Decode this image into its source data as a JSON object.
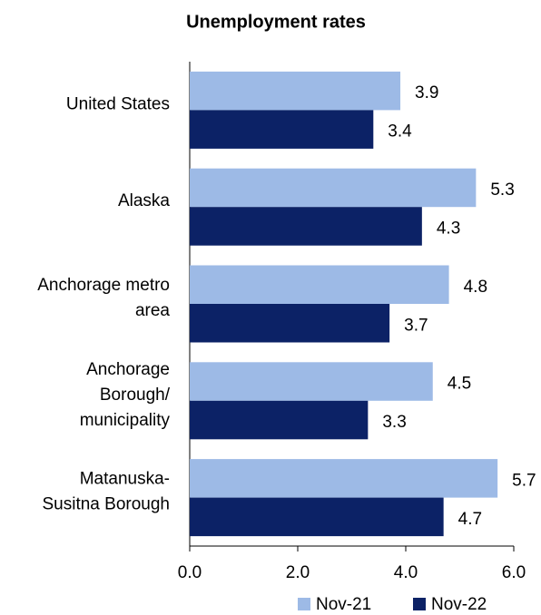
{
  "chart_data": {
    "type": "bar",
    "orientation": "horizontal",
    "title": "Unemployment rates",
    "categories": [
      "United States",
      "Alaska",
      "Anchorage metro\narea",
      "Anchorage\nBorough/\nmunicipality",
      "Matanuska-\nSusitna Borough"
    ],
    "series": [
      {
        "name": "Nov-21",
        "color": "#9dbae6",
        "values": [
          3.9,
          5.3,
          4.8,
          4.5,
          5.7
        ]
      },
      {
        "name": "Nov-22",
        "color": "#0c2266",
        "values": [
          3.4,
          4.3,
          3.7,
          3.3,
          4.7
        ]
      }
    ],
    "xlim": [
      0,
      6
    ],
    "xticks": [
      {
        "value": 0,
        "label": "0.0"
      },
      {
        "value": 2,
        "label": "2.0"
      },
      {
        "value": 4,
        "label": "4.0"
      },
      {
        "value": 6,
        "label": "6.0"
      }
    ],
    "legend": "bottom"
  }
}
